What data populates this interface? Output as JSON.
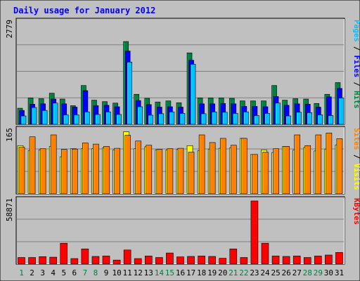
{
  "chart_data": {
    "type": "bar",
    "title": "Daily usage for January 2012",
    "categories": [
      "1",
      "2",
      "3",
      "4",
      "5",
      "6",
      "7",
      "8",
      "9",
      "10",
      "11",
      "12",
      "13",
      "14",
      "15",
      "16",
      "17",
      "18",
      "19",
      "20",
      "21",
      "22",
      "23",
      "24",
      "25",
      "26",
      "27",
      "28",
      "29",
      "30",
      "31"
    ],
    "weekend_days": [
      "1",
      "7",
      "8",
      "14",
      "15",
      "21",
      "22",
      "28",
      "29"
    ],
    "panels": [
      {
        "name": "hits-files-pages",
        "max_label": "2779",
        "ylim": [
          0,
          2779
        ],
        "legend": [
          {
            "text": "Pages",
            "color": "#00c0ff"
          },
          {
            "text": "Files",
            "color": "#0000ff"
          },
          {
            "text": "Hits",
            "color": "#008040"
          }
        ],
        "series": [
          {
            "name": "Hits",
            "color": "#008040",
            "values": [
              440,
              720,
              700,
              850,
              690,
              510,
              1060,
              660,
              620,
              580,
              2260,
              820,
              710,
              610,
              640,
              590,
              1950,
              720,
              720,
              720,
              710,
              640,
              640,
              640,
              1060,
              660,
              700,
              690,
              570,
              820,
              1140
            ]
          },
          {
            "name": "Files",
            "color": "#0000ff",
            "values": [
              380,
              550,
              560,
              690,
              560,
              470,
              920,
              510,
              520,
              480,
              2000,
              650,
              540,
              470,
              480,
              470,
              1750,
              560,
              560,
              570,
              560,
              490,
              490,
              480,
              760,
              520,
              560,
              550,
              470,
              750,
              980
            ]
          },
          {
            "name": "Pages",
            "color": "#00c0ff",
            "values": [
              230,
              460,
              380,
              580,
              260,
              260,
              340,
              270,
              340,
              270,
              1700,
              480,
              250,
              290,
              340,
              300,
              1640,
              290,
              340,
              330,
              300,
              340,
              240,
              300,
              580,
              230,
              330,
              320,
              260,
              240,
              720
            ]
          }
        ]
      },
      {
        "name": "sites-visits",
        "max_label": "165",
        "ylim": [
          0,
          165
        ],
        "legend": [
          {
            "text": "Sites",
            "color": "#ff8000"
          },
          {
            "text": "Visits",
            "color": "#ffff00"
          }
        ],
        "series": [
          {
            "name": "Visits",
            "color": "#ffff00",
            "values": [
              126,
              113,
              115,
              124,
              97,
              118,
              118,
              118,
              120,
              115,
              162,
              118,
              123,
              115,
              115,
              116,
              126,
              113,
              117,
              119,
              120,
              145,
              103,
              115,
              108,
              124,
              115,
              121,
              112,
              117,
              128
            ]
          },
          {
            "name": "Sites",
            "color": "#ff8000",
            "values": [
              122,
              149,
              118,
              154,
              116,
              117,
              133,
              130,
              124,
              119,
              153,
              138,
              127,
              116,
              118,
              119,
              109,
              154,
              134,
              145,
              127,
              145,
              103,
              109,
              118,
              124,
              154,
              126,
              154,
              159,
              144
            ]
          }
        ]
      },
      {
        "name": "kbytes",
        "max_label": "58871",
        "ylim": [
          0,
          58871
        ],
        "legend": [
          {
            "text": "KBytes",
            "color": "#ff0000"
          }
        ],
        "series": [
          {
            "name": "KBytes",
            "color": "#ff0000",
            "values": [
              6200,
              6200,
              7000,
              6500,
              19500,
              5200,
              14200,
              7200,
              7600,
              3800,
              13200,
              5200,
              7600,
              6200,
              10400,
              6800,
              7200,
              7600,
              7200,
              5500,
              14200,
              6200,
              58871,
              19500,
              7600,
              7200,
              7600,
              6200,
              7600,
              8500,
              10900
            ]
          }
        ]
      }
    ]
  }
}
